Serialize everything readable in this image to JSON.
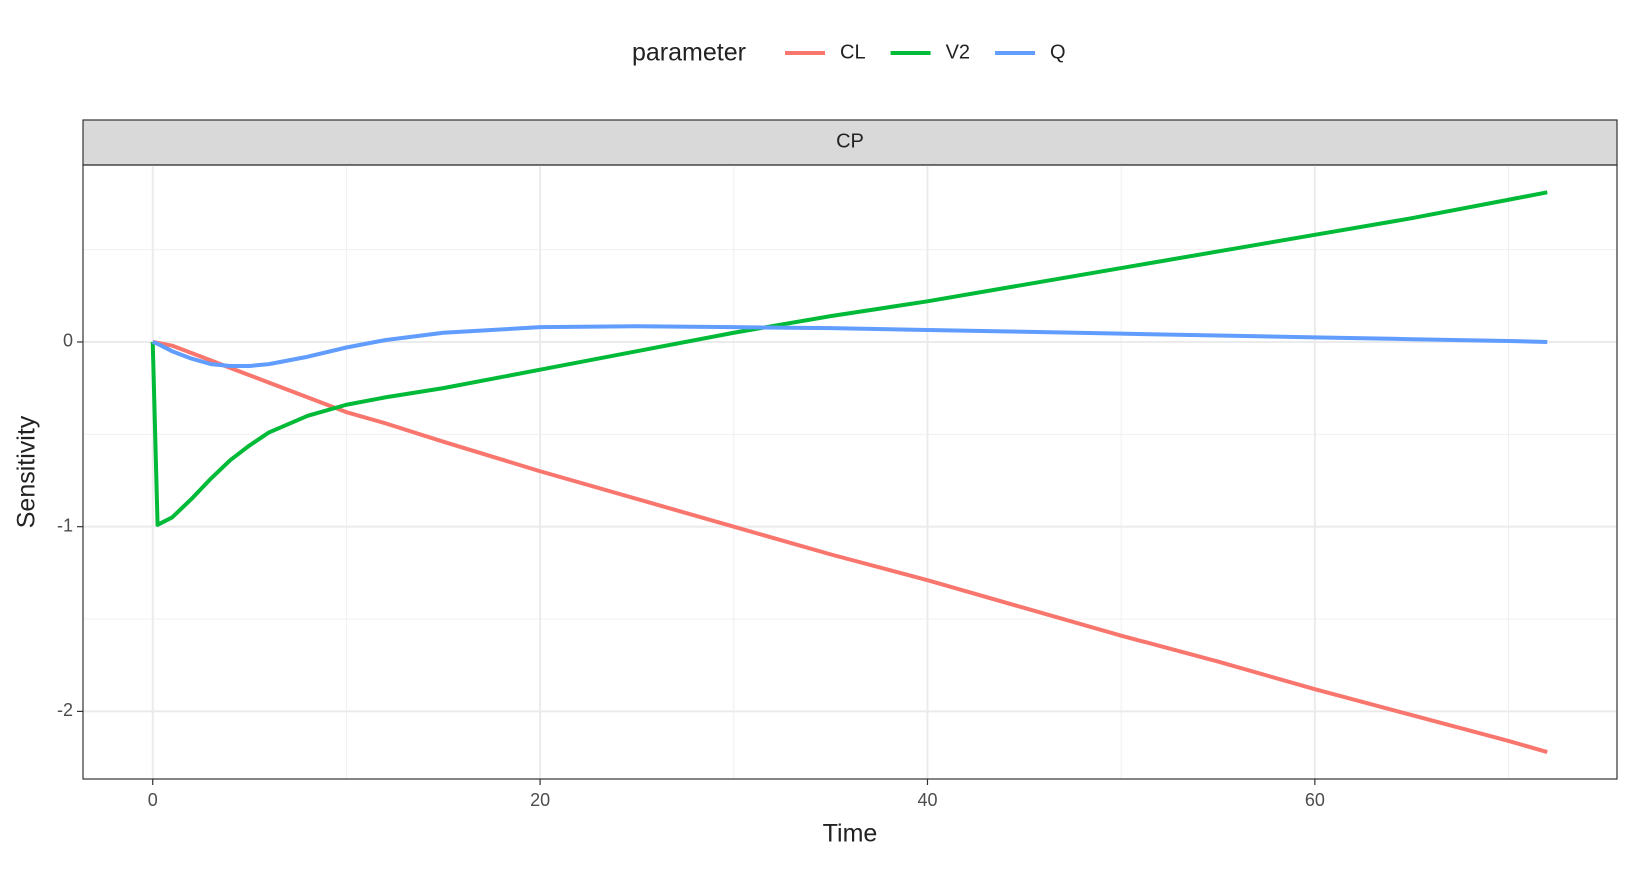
{
  "chart_data": {
    "type": "line",
    "facet_label": "CP",
    "x_label": "Time",
    "y_label": "Sensitivity",
    "legend_title": "parameter",
    "legend_position": "top",
    "x": [
      0,
      0.25,
      1,
      2,
      3,
      4,
      5,
      6,
      8,
      10,
      12,
      15,
      20,
      25,
      30,
      35,
      40,
      45,
      50,
      55,
      60,
      65,
      70,
      72
    ],
    "series": [
      {
        "name": "CL",
        "color": "#f8766d",
        "values": [
          0,
          -0.005,
          -0.02,
          -0.06,
          -0.1,
          -0.14,
          -0.18,
          -0.22,
          -0.3,
          -0.38,
          -0.44,
          -0.54,
          -0.7,
          -0.85,
          -1.0,
          -1.15,
          -1.29,
          -1.44,
          -1.59,
          -1.73,
          -1.88,
          -2.02,
          -2.16,
          -2.22
        ]
      },
      {
        "name": "V2",
        "color": "#00ba38",
        "values": [
          0,
          -0.99,
          -0.95,
          -0.85,
          -0.74,
          -0.64,
          -0.56,
          -0.49,
          -0.4,
          -0.34,
          -0.3,
          -0.25,
          -0.15,
          -0.05,
          0.05,
          0.14,
          0.22,
          0.31,
          0.4,
          0.49,
          0.58,
          0.67,
          0.77,
          0.81
        ]
      },
      {
        "name": "Q",
        "color": "#619cff",
        "values": [
          0,
          -0.01,
          -0.05,
          -0.09,
          -0.12,
          -0.13,
          -0.13,
          -0.12,
          -0.08,
          -0.03,
          0.01,
          0.05,
          0.08,
          0.085,
          0.08,
          0.075,
          0.065,
          0.055,
          0.045,
          0.035,
          0.025,
          0.015,
          0.005,
          0
        ]
      }
    ],
    "xlim": [
      -3.6,
      75.6
    ],
    "ylim": [
      -2.366,
      0.958
    ],
    "xticks": [
      0,
      20,
      40,
      60
    ],
    "yticks": [
      -2,
      -1,
      0
    ],
    "x_minor_grid": [
      10,
      30,
      50,
      70
    ],
    "y_minor_grid": [
      -1.5,
      -0.5,
      0.5
    ],
    "grid": true
  }
}
